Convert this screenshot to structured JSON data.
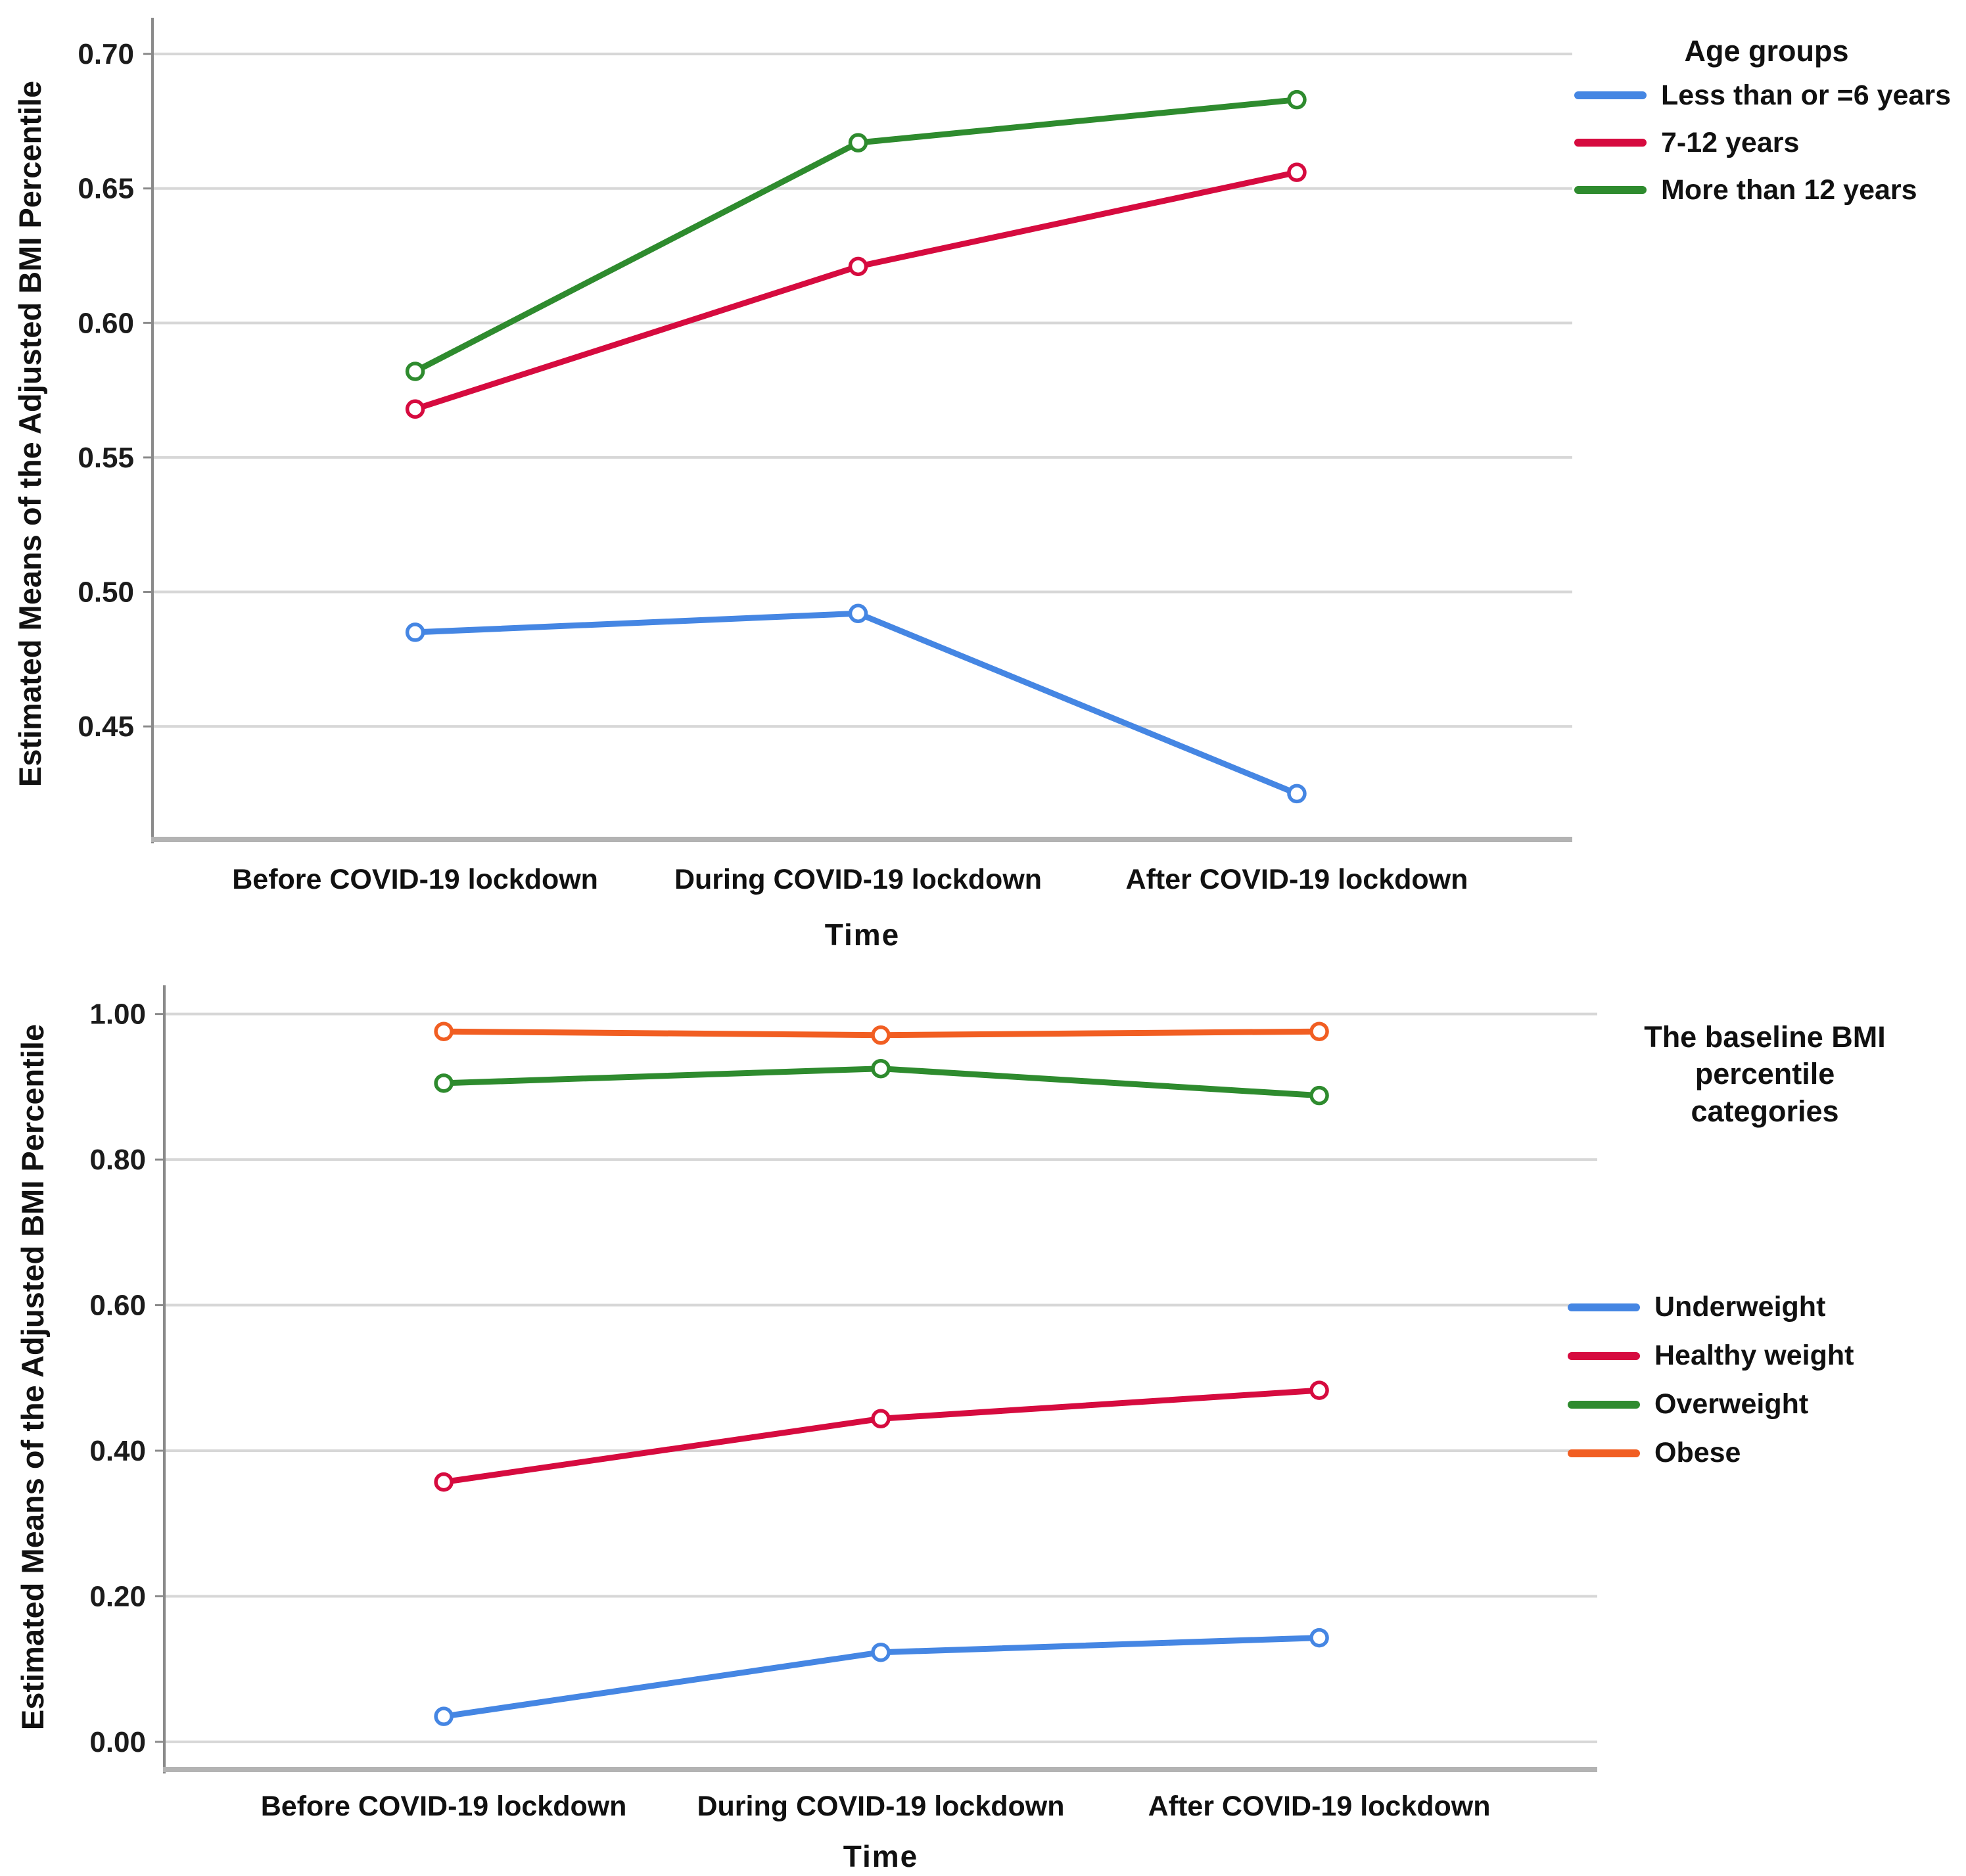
{
  "chart_data": [
    {
      "type": "line",
      "title": "",
      "xlabel": "Time",
      "ylabel": "Estimated Means of the Adjusted BMI Percentile",
      "categories": [
        "Before COVID-19 lockdown",
        "During COVID-19 lockdown",
        "After COVID-19 lockdown"
      ],
      "legend_title": "Age groups",
      "legend_position": "right",
      "grid": true,
      "ylim": [
        0.408,
        0.712
      ],
      "yticks": [
        0.45,
        0.5,
        0.55,
        0.6,
        0.65,
        0.7
      ],
      "marker": "open-circle",
      "series": [
        {
          "name": "Less than or =6 years",
          "color": "#4586e3",
          "values": [
            0.485,
            0.492,
            0.425
          ]
        },
        {
          "name": "7-12 years",
          "color": "#d60b3f",
          "values": [
            0.568,
            0.621,
            0.656
          ]
        },
        {
          "name": "More than 12 years",
          "color": "#2e8b2e",
          "values": [
            0.582,
            0.667,
            0.683
          ]
        }
      ]
    },
    {
      "type": "line",
      "title": "",
      "xlabel": "Time",
      "ylabel": "Estimated Means of the Adjusted BMI Percentile",
      "categories": [
        "Before COVID-19 lockdown",
        "During COVID-19 lockdown",
        "After COVID-19 lockdown"
      ],
      "legend_title": "The baseline BMI\npercentile\ncategories",
      "legend_position": "right",
      "grid": true,
      "ylim": [
        -0.038,
        1.034
      ],
      "yticks": [
        0.0,
        0.2,
        0.4,
        0.6,
        0.8,
        1.0
      ],
      "marker": "open-circle",
      "series": [
        {
          "name": "Underweight",
          "color": "#4586e3",
          "values": [
            0.035,
            0.123,
            0.143
          ]
        },
        {
          "name": "Healthy weight",
          "color": "#d60b3f",
          "values": [
            0.357,
            0.444,
            0.483
          ]
        },
        {
          "name": "Overweight",
          "color": "#2e8b2e",
          "values": [
            0.905,
            0.925,
            0.888
          ]
        },
        {
          "name": "Obese",
          "color": "#f15e22",
          "values": [
            0.976,
            0.971,
            0.976
          ]
        }
      ]
    }
  ],
  "style": {
    "gridline_color": "#d7d7d7",
    "axis_color": "#8a8a8a",
    "baseline_color": "#b3b3b3",
    "text_color": "#111111"
  }
}
